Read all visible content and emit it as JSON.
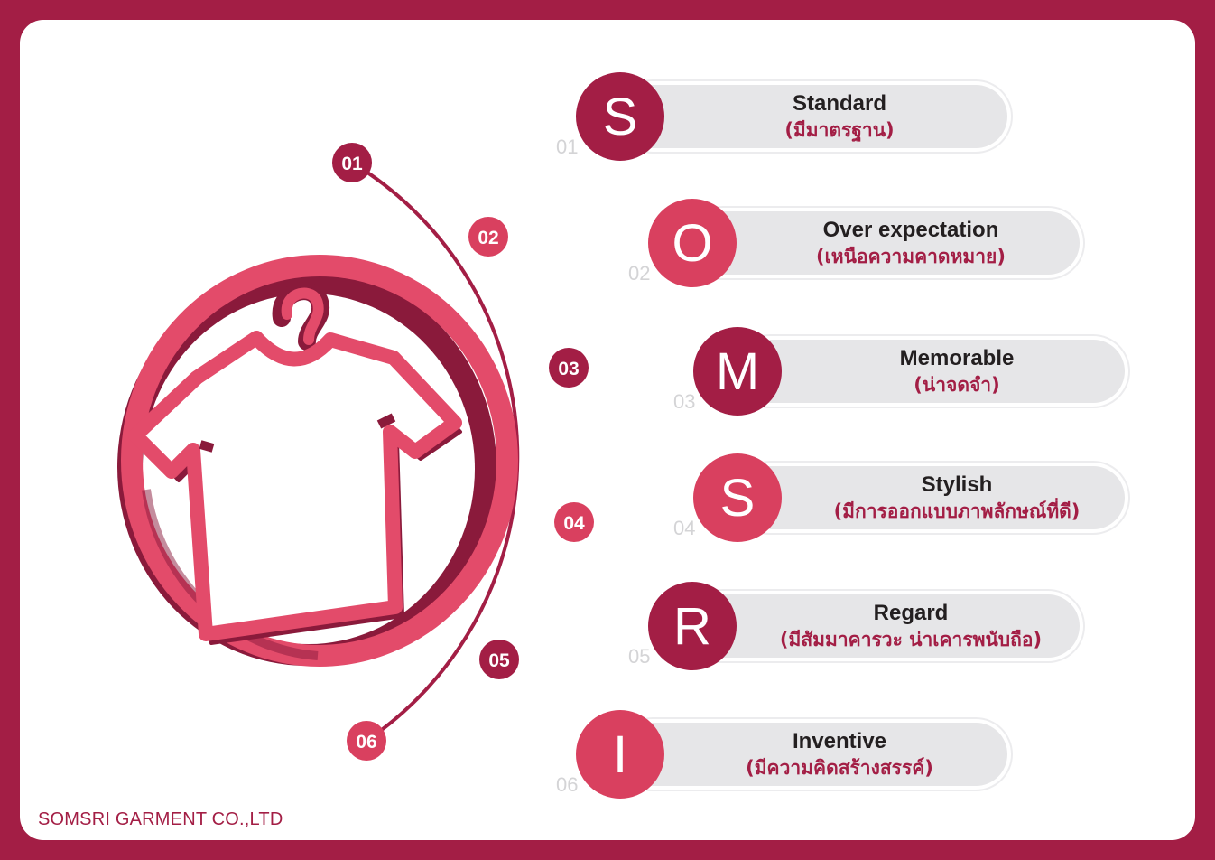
{
  "acronym": [
    {
      "num": "01",
      "letter": "S",
      "title": "Standard",
      "subtitle": "(มีมาตรฐาน)",
      "tone": "dark"
    },
    {
      "num": "02",
      "letter": "O",
      "title": "Over expectation",
      "subtitle": "(เหนือความคาดหมาย)",
      "tone": "light"
    },
    {
      "num": "03",
      "letter": "M",
      "title": "Memorable",
      "subtitle": "(น่าจดจำ)",
      "tone": "dark"
    },
    {
      "num": "04",
      "letter": "S",
      "title": "Stylish",
      "subtitle": "(มีการออกแบบภาพลักษณ์ที่ดี)",
      "tone": "light"
    },
    {
      "num": "05",
      "letter": "R",
      "title": "Regard",
      "subtitle": "(มีสัมมาคารวะ น่าเคารพนับถือ)",
      "tone": "dark"
    },
    {
      "num": "06",
      "letter": "I",
      "title": "Inventive",
      "subtitle": "(มีความคิดสร้างสรรค์)",
      "tone": "light"
    }
  ],
  "arc_labels": [
    "01",
    "02",
    "03",
    "04",
    "05",
    "06"
  ],
  "footer": "SOMSRI GARMENT CO.,LTD",
  "icons": {
    "main": "shirt-on-hanger-icon"
  },
  "colors": {
    "frame": "#a31e45",
    "dark": "#a31e45",
    "light": "#d9405f",
    "pill": "#e6e6e8"
  }
}
